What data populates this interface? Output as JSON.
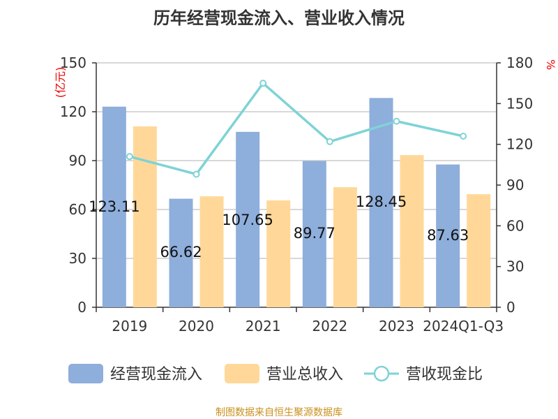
{
  "chart_data": {
    "type": "bar",
    "title": "历年经营现金流入、营业收入情况",
    "categories": [
      "2019",
      "2020",
      "2021",
      "2022",
      "2023",
      "2024Q1-Q3"
    ],
    "ylabel_left": "(亿元)",
    "ylabel_right": "%",
    "ylim_left": [
      0,
      150
    ],
    "ylim_right": [
      0,
      180
    ],
    "yticks_left": [
      0,
      30,
      60,
      90,
      120,
      150
    ],
    "yticks_right": [
      0,
      30,
      60,
      90,
      120,
      150,
      180
    ],
    "grid": true,
    "legend_position": "bottom",
    "series": [
      {
        "name": "经营现金流入",
        "type": "bar",
        "axis": "left",
        "color": "#8eaedb",
        "values": [
          123.11,
          66.62,
          107.65,
          89.77,
          128.45,
          87.63
        ],
        "labels": [
          "123.11",
          "66.62",
          "107.65",
          "89.77",
          "128.45",
          "87.63"
        ]
      },
      {
        "name": "营业总收入",
        "type": "bar",
        "axis": "left",
        "color": "#ffd899",
        "values": [
          111.0,
          68.1,
          65.6,
          73.7,
          93.4,
          69.4
        ]
      },
      {
        "name": "营收现金比",
        "type": "line",
        "axis": "right",
        "color": "#7fd3d6",
        "values": [
          111,
          98,
          165,
          122,
          137,
          126
        ]
      }
    ]
  },
  "source": "制图数据来自恒生聚源数据库"
}
